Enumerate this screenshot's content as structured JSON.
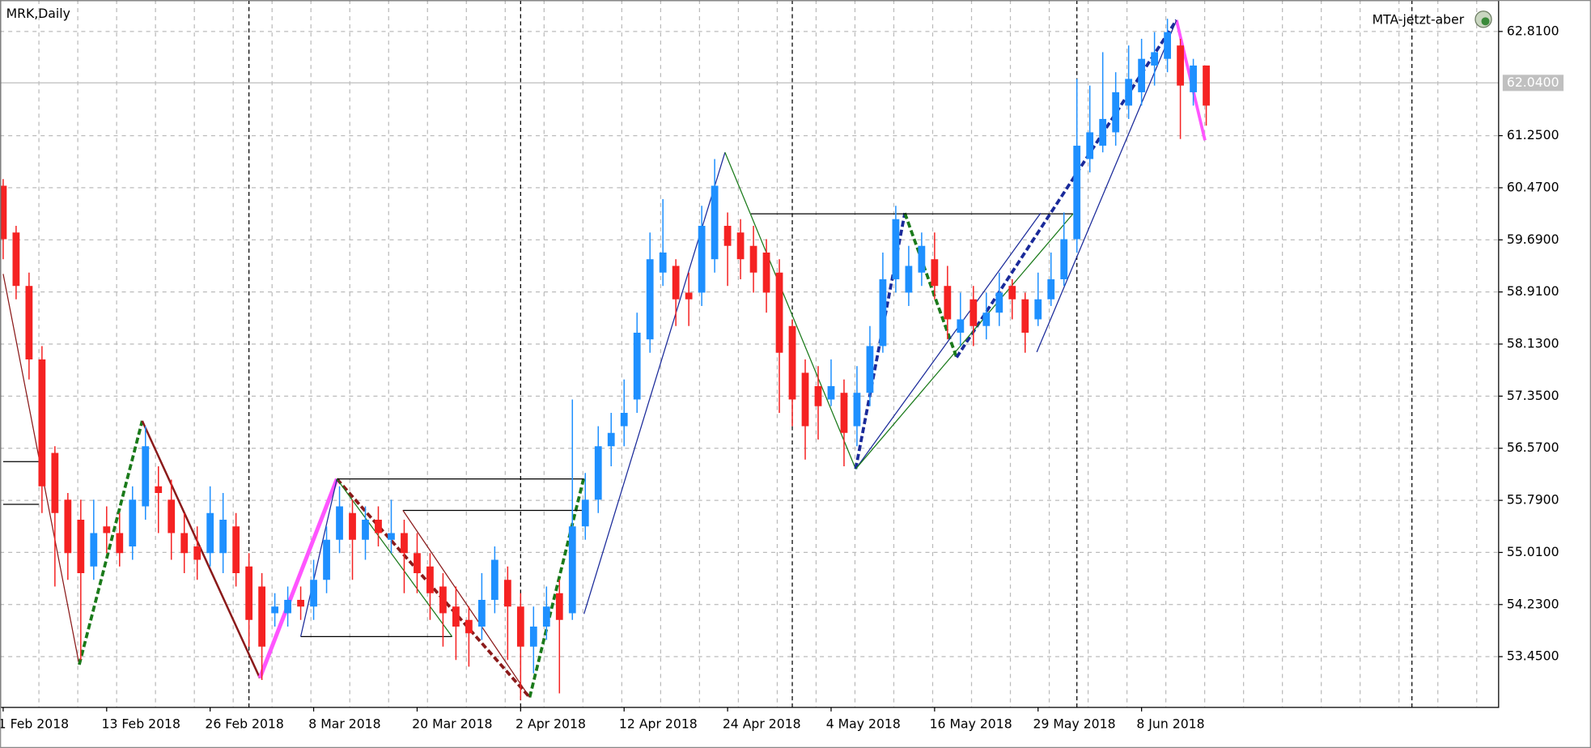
{
  "chart_data": {
    "type": "candlestick",
    "title": "MRK,Daily",
    "indicator_label": "MTA-jetzt-aber",
    "bull_color": "#1e90ff",
    "bear_color": "#f52222",
    "categories": [
      "1 Feb 2018",
      null,
      null,
      null,
      null,
      null,
      null,
      null,
      "13 Feb 2018",
      null,
      null,
      null,
      null,
      null,
      null,
      null,
      "26 Feb 2018",
      null,
      null,
      null,
      null,
      null,
      null,
      null,
      "8 Mar 2018",
      null,
      null,
      null,
      null,
      null,
      null,
      null,
      "20 Mar 2018",
      null,
      null,
      null,
      null,
      null,
      null,
      null,
      "2 Apr 2018",
      null,
      null,
      null,
      null,
      null,
      null,
      null,
      "12 Apr 2018",
      null,
      null,
      null,
      null,
      null,
      null,
      null,
      "24 Apr 2018",
      null,
      null,
      null,
      null,
      null,
      null,
      null,
      "4 May 2018",
      null,
      null,
      null,
      null,
      null,
      null,
      null,
      "16 May 2018",
      null,
      null,
      null,
      null,
      null,
      null,
      null,
      "29 May 2018",
      null,
      null,
      null,
      null,
      null,
      null,
      null,
      "8 Jun 2018",
      null,
      null,
      null,
      null,
      null
    ],
    "open": [
      60.5,
      59.8,
      59.0,
      57.9,
      56.5,
      55.8,
      55.5,
      54.8,
      55.4,
      55.3,
      55.1,
      55.7,
      56.0,
      55.8,
      55.3,
      55.1,
      55.0,
      55.0,
      55.4,
      54.8,
      54.5,
      54.1,
      54.1,
      54.3,
      54.2,
      54.6,
      55.2,
      55.6,
      55.2,
      55.5,
      55.2,
      55.3,
      55.0,
      54.8,
      54.5,
      54.2,
      54.0,
      53.9,
      54.3,
      54.6,
      54.2,
      53.6,
      53.9,
      54.4,
      54.1,
      55.4,
      55.8,
      56.6,
      56.9,
      57.3,
      58.2,
      59.2,
      59.3,
      58.9,
      58.9,
      59.4,
      59.9,
      59.8,
      59.6,
      59.5,
      59.2,
      58.4,
      57.7,
      57.5,
      57.3,
      57.4,
      56.9,
      57.4,
      58.1,
      59.1,
      58.9,
      59.2,
      59.4,
      59.0,
      58.3,
      58.8,
      58.4,
      58.6,
      59.0,
      58.8,
      58.5,
      58.8,
      59.1,
      59.7,
      60.9,
      61.1,
      61.3,
      61.7,
      61.9,
      62.3,
      62.4,
      62.6,
      61.9,
      62.3
    ],
    "high": [
      60.6,
      59.9,
      59.2,
      58.1,
      56.6,
      55.9,
      55.8,
      55.8,
      55.7,
      55.6,
      56.0,
      56.9,
      56.3,
      56.1,
      55.6,
      55.4,
      56.0,
      55.9,
      55.6,
      55.0,
      54.7,
      54.4,
      54.5,
      54.5,
      54.9,
      55.4,
      56.0,
      55.8,
      55.7,
      55.7,
      55.8,
      55.5,
      55.3,
      55.0,
      54.7,
      54.5,
      54.2,
      54.7,
      55.1,
      54.8,
      54.4,
      54.2,
      54.5,
      54.6,
      57.3,
      56.2,
      56.9,
      57.1,
      57.6,
      58.6,
      59.8,
      60.3,
      59.4,
      59.2,
      60.2,
      60.9,
      60.1,
      60.0,
      59.9,
      59.7,
      59.4,
      58.5,
      57.9,
      57.8,
      57.9,
      57.6,
      57.8,
      58.4,
      59.5,
      60.2,
      59.6,
      59.8,
      59.8,
      59.3,
      58.9,
      59.0,
      58.9,
      59.2,
      59.1,
      58.9,
      59.2,
      59.5,
      60.1,
      62.1,
      62.0,
      62.5,
      62.2,
      62.6,
      62.7,
      62.8,
      63.0,
      62.7,
      62.4,
      62.3
    ],
    "low": [
      59.4,
      58.8,
      57.6,
      55.6,
      54.5,
      54.6,
      53.4,
      54.6,
      55.0,
      54.8,
      54.9,
      55.5,
      55.3,
      54.9,
      54.7,
      54.6,
      54.8,
      54.7,
      54.5,
      53.6,
      53.1,
      53.9,
      53.9,
      54.0,
      54.0,
      54.4,
      55.0,
      54.6,
      54.9,
      55.1,
      55.0,
      54.4,
      54.4,
      54.0,
      53.6,
      53.4,
      53.3,
      53.7,
      54.1,
      53.4,
      52.8,
      53.2,
      53.7,
      52.9,
      54.0,
      55.2,
      55.6,
      56.3,
      56.6,
      57.1,
      58.0,
      59.0,
      58.4,
      58.4,
      58.7,
      59.2,
      59.0,
      59.1,
      58.9,
      58.6,
      57.1,
      56.9,
      56.4,
      56.7,
      57.2,
      56.3,
      56.6,
      57.2,
      58.0,
      58.9,
      58.7,
      59.0,
      58.8,
      58.2,
      58.1,
      58.1,
      58.2,
      58.4,
      58.5,
      58.0,
      58.4,
      58.7,
      59.0,
      59.5,
      60.7,
      61.0,
      61.1,
      61.5,
      61.7,
      62.0,
      62.2,
      61.2,
      61.7,
      61.4
    ],
    "close": [
      59.7,
      59.0,
      57.9,
      56.0,
      55.6,
      55.0,
      54.7,
      55.3,
      55.3,
      55.0,
      55.8,
      56.6,
      55.9,
      55.3,
      55.0,
      54.9,
      55.6,
      55.5,
      54.7,
      54.0,
      53.6,
      54.2,
      54.3,
      54.2,
      54.6,
      55.2,
      55.7,
      55.2,
      55.5,
      55.3,
      55.3,
      55.0,
      54.7,
      54.4,
      54.1,
      53.9,
      53.8,
      54.3,
      54.9,
      54.2,
      53.6,
      53.9,
      54.2,
      54.0,
      55.4,
      55.8,
      56.6,
      56.8,
      57.1,
      58.3,
      59.4,
      59.5,
      58.8,
      58.8,
      59.9,
      60.5,
      59.6,
      59.4,
      59.2,
      58.9,
      58.0,
      57.3,
      56.9,
      57.2,
      57.5,
      56.8,
      57.4,
      58.1,
      59.1,
      60.0,
      59.3,
      59.6,
      59.0,
      58.5,
      58.5,
      58.4,
      58.6,
      58.9,
      58.8,
      58.3,
      58.8,
      59.1,
      59.7,
      61.1,
      61.3,
      61.5,
      61.9,
      62.1,
      62.4,
      62.5,
      62.8,
      62.0,
      62.3,
      61.7
    ],
    "xlim": [
      -0.24,
      115.6
    ],
    "ylim": [
      52.69,
      63.281
    ],
    "yticks": [
      {
        "value": 62.81,
        "label": "62.8100"
      },
      {
        "value": 61.25,
        "label": "61.2500"
      },
      {
        "value": 60.47,
        "label": "60.4700"
      },
      {
        "value": 59.69,
        "label": "59.6900"
      },
      {
        "value": 58.91,
        "label": "58.9100"
      },
      {
        "value": 58.13,
        "label": "58.1300"
      },
      {
        "value": 57.35,
        "label": "57.3500"
      },
      {
        "value": 56.57,
        "label": "56.5700"
      },
      {
        "value": 55.79,
        "label": "55.7900"
      },
      {
        "value": 55.01,
        "label": "55.0100"
      },
      {
        "value": 54.23,
        "label": "54.2300"
      },
      {
        "value": 53.45,
        "label": "53.4500"
      }
    ],
    "bid": {
      "value": 62.04,
      "label": "62.0400"
    },
    "grid": true,
    "period_separators": [
      19,
      40,
      61,
      83,
      108.9
    ],
    "overlays": [
      {
        "color": "#8b1a1a",
        "width": 1,
        "dashed": false,
        "x": [
          0,
          5.88
        ],
        "y": [
          59.18,
          53.33
        ]
      },
      {
        "color": "#1a7a1a",
        "width": 3,
        "dashed": true,
        "x": [
          5.88,
          10.75
        ],
        "y": [
          53.33,
          56.98
        ]
      },
      {
        "color": "#8b1a1a",
        "width": 2,
        "dashed": false,
        "x": [
          10.75,
          19.84
        ],
        "y": [
          56.98,
          53.13
        ]
      },
      {
        "color": "#ff55ff",
        "width": 4,
        "dashed": false,
        "x": [
          19.84,
          25.8
        ],
        "y": [
          53.13,
          56.11
        ]
      },
      {
        "color": "#8b1a1a",
        "width": 3,
        "dashed": true,
        "x": [
          25.8,
          40.7
        ],
        "y": [
          56.11,
          52.84
        ]
      },
      {
        "color": "#1a7a1a",
        "width": 3,
        "dashed": true,
        "x": [
          40.7,
          44.9
        ],
        "y": [
          52.84,
          56.14
        ]
      },
      {
        "color": "#1a2a9a",
        "width": 1,
        "dashed": false,
        "x": [
          44.9,
          55.8
        ],
        "y": [
          54.09,
          61.0
        ]
      },
      {
        "color": "#1a7a1a",
        "width": 1,
        "dashed": false,
        "x": [
          55.8,
          65.9
        ],
        "y": [
          61.0,
          56.26
        ]
      },
      {
        "color": "#1a2a9a",
        "width": 3,
        "dashed": true,
        "x": [
          65.9,
          69.7
        ],
        "y": [
          56.26,
          60.09
        ]
      },
      {
        "color": "#1a7a1a",
        "width": 3,
        "dashed": true,
        "x": [
          69.7,
          73.7
        ],
        "y": [
          60.09,
          57.93
        ]
      },
      {
        "color": "#1a2a9a",
        "width": 3,
        "dashed": true,
        "x": [
          73.7,
          90.7
        ],
        "y": [
          57.93,
          62.98
        ]
      },
      {
        "color": "#ff55ff",
        "width": 3,
        "dashed": false,
        "x": [
          90.7,
          92.9
        ],
        "y": [
          62.98,
          61.18
        ]
      },
      {
        "color": "#000000",
        "width": 1,
        "dashed": false,
        "x": [
          0,
          2.75
        ],
        "y": [
          56.37,
          56.37
        ]
      },
      {
        "color": "#000000",
        "width": 1,
        "dashed": false,
        "x": [
          0,
          2.75
        ],
        "y": [
          55.73,
          55.73
        ]
      },
      {
        "color": "#000000",
        "width": 1,
        "dashed": false,
        "x": [
          25.8,
          44.9
        ],
        "y": [
          56.11,
          56.11
        ]
      },
      {
        "color": "#000000",
        "width": 1,
        "dashed": false,
        "x": [
          30.9,
          44.9
        ],
        "y": [
          55.64,
          55.64
        ]
      },
      {
        "color": "#000000",
        "width": 1,
        "dashed": false,
        "x": [
          23.0,
          34.7
        ],
        "y": [
          53.75,
          53.75
        ]
      },
      {
        "color": "#000000",
        "width": 1,
        "dashed": false,
        "x": [
          57.8,
          82.7
        ],
        "y": [
          60.08,
          60.08
        ]
      },
      {
        "color": "#1a2a9a",
        "width": 1,
        "dashed": false,
        "x": [
          65.9,
          80.2
        ],
        "y": [
          56.26,
          60.09
        ]
      },
      {
        "color": "#1a7a1a",
        "width": 1,
        "dashed": false,
        "x": [
          65.9,
          82.7
        ],
        "y": [
          56.26,
          60.08
        ]
      },
      {
        "color": "#1a2a9a",
        "width": 1,
        "dashed": false,
        "x": [
          79.9,
          90.7
        ],
        "y": [
          58.01,
          62.98
        ]
      },
      {
        "color": "#1a2a9a",
        "width": 1,
        "dashed": false,
        "x": [
          23.0,
          25.8
        ],
        "y": [
          53.75,
          56.11
        ]
      },
      {
        "color": "#8b1a1a",
        "width": 1,
        "dashed": false,
        "x": [
          30.9,
          40.7
        ],
        "y": [
          55.64,
          52.84
        ]
      },
      {
        "color": "#1a7a1a",
        "width": 1,
        "dashed": false,
        "x": [
          25.8,
          34.7
        ],
        "y": [
          56.11,
          53.75
        ]
      }
    ]
  }
}
